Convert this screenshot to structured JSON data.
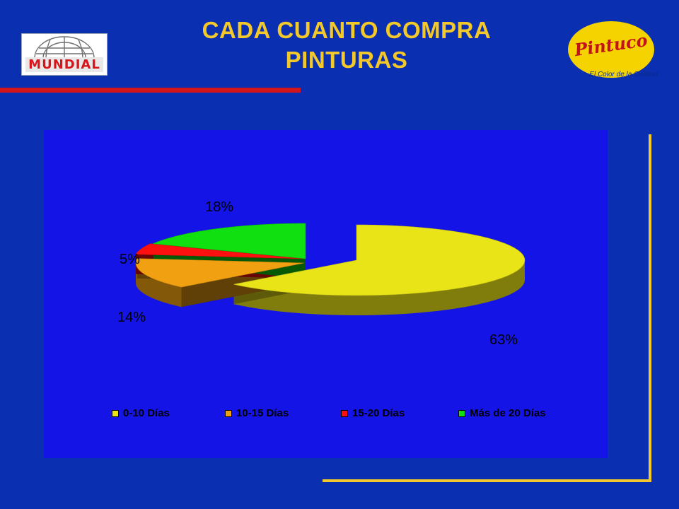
{
  "title_line1": "CADA CUANTO COMPRA",
  "title_line2": "PINTURAS",
  "logos": {
    "left": "MUNDIAL",
    "right_brand": "Pintuco",
    "right_slogan": "El Color de la Calidad"
  },
  "chart_data": {
    "type": "pie",
    "title": "",
    "categories": [
      "0-10 Días",
      "10-15 Días",
      "15-20 Días",
      "Más de 20 Días"
    ],
    "values": [
      63,
      14,
      5,
      18
    ],
    "labels": [
      "63%",
      "14%",
      "5%",
      "18%"
    ],
    "colors": [
      "#e8e418",
      "#f0a010",
      "#ff1010",
      "#10e010"
    ],
    "legend_placement": "bottom",
    "exploded": true
  }
}
